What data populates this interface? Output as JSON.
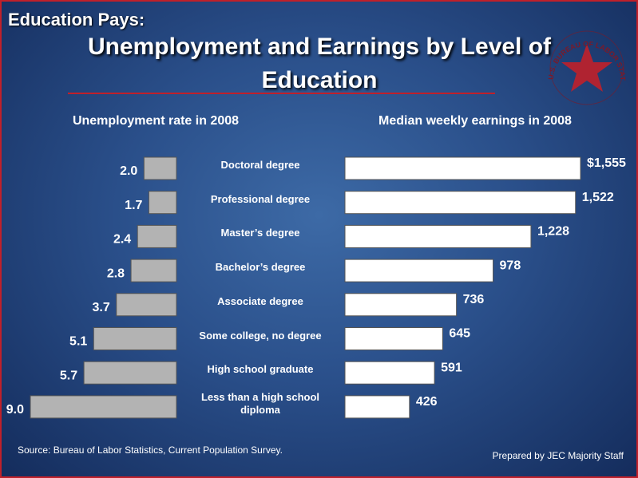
{
  "header": {
    "kicker": "Education Pays:",
    "title": "Unemployment and Earnings by Level of Education",
    "logo_text": "U.S. BUREAU OF LABOR STATISTICS"
  },
  "chart_data": [
    {
      "type": "bar",
      "orientation": "horizontal",
      "bar_direction": "left",
      "title": "Unemployment rate in 2008",
      "categories": [
        "Doctoral degree",
        "Professional degree",
        "Master’s degree",
        "Bachelor’s degree",
        "Associate degree",
        "Some college, no degree",
        "High school graduate",
        "Less than a high school diploma"
      ],
      "values": [
        2.0,
        1.7,
        2.4,
        2.8,
        3.7,
        5.1,
        5.7,
        9.0
      ],
      "value_labels": [
        "2.0",
        "1.7",
        "2.4",
        "2.8",
        "3.7",
        "5.1",
        "5.7",
        "9.0"
      ],
      "color": "#b3b3b3"
    },
    {
      "type": "bar",
      "orientation": "horizontal",
      "bar_direction": "right",
      "title": "Median weekly earnings in 2008",
      "values": [
        1555,
        1522,
        1228,
        978,
        736,
        645,
        591,
        426
      ],
      "value_labels": [
        "$1,555",
        "1,522",
        "1,228",
        "978",
        "736",
        "645",
        "591",
        "426"
      ],
      "color": "#ffffff"
    }
  ],
  "footer": {
    "source": "Source: Bureau of Labor Statistics, Current Population Survey.",
    "credit": "Prepared by JEC Majority Staff"
  }
}
